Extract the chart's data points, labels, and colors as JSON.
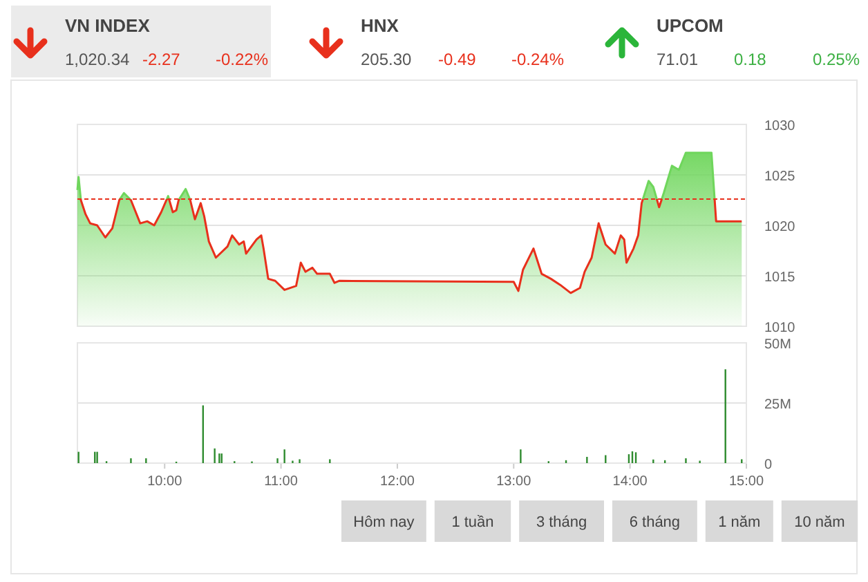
{
  "chart_data": [
    {
      "type": "other",
      "annotations": [
        "VN INDEX",
        "1,020.34",
        "-2.27",
        "-0.22%",
        "HNX",
        "205.30",
        "-0.49",
        "-0.24%",
        "UPCOM",
        "71.01",
        "0.18",
        "0.25%"
      ]
    },
    {
      "type": "area",
      "xlim": [
        9.25,
        15
      ],
      "ylim": [
        1010,
        1030
      ],
      "yticks": [
        1010,
        1015,
        1020,
        1025,
        1030
      ],
      "grid": "y",
      "tick_labels": "y",
      "ref_lines": [
        {
          "axis": "y",
          "value": 1022.61,
          "color": "#e8301c",
          "line_style": "dashed"
        }
      ],
      "series": [
        {
          "color": "#6fd65c",
          "x": [
            9.25,
            9.26,
            9.28,
            9.32,
            9.36,
            9.42,
            9.49,
            9.55,
            9.61,
            9.65,
            9.71,
            9.79,
            9.85,
            9.91,
            9.97,
            10.03,
            10.07,
            10.1,
            10.12,
            10.18,
            10.22,
            10.26,
            10.31,
            10.34,
            10.38,
            10.44,
            10.54,
            10.58,
            10.64,
            10.68,
            10.7,
            10.79,
            10.83,
            10.85,
            10.89,
            10.95,
            11.03,
            11.13,
            11.17,
            11.21,
            11.27,
            11.31,
            11.42,
            11.46,
            11.5,
            13.0,
            13.04,
            13.08,
            13.17,
            13.24,
            13.32,
            13.4,
            13.49,
            13.57,
            13.61,
            13.67,
            13.73,
            13.79,
            13.87,
            13.92,
            13.95,
            13.97,
            14.03,
            14.07,
            14.1,
            14.16,
            14.2,
            14.25,
            14.29,
            14.36,
            14.42,
            14.48,
            14.7,
            14.74,
            14.96
          ],
          "values": [
            1023.5,
            1024.8,
            1022.5,
            1021.1,
            1020.2,
            1020,
            1018.8,
            1019.7,
            1022.5,
            1023.2,
            1022.5,
            1020.2,
            1020.4,
            1020,
            1021.3,
            1022.9,
            1021.3,
            1021.5,
            1022.5,
            1023.6,
            1022.5,
            1020.6,
            1022.2,
            1020.9,
            1018.4,
            1016.8,
            1017.9,
            1019,
            1018.1,
            1018.4,
            1017.2,
            1018.6,
            1019,
            1017.7,
            1014.7,
            1014.5,
            1013.6,
            1014,
            1016.3,
            1015.4,
            1015.8,
            1015.2,
            1015.2,
            1014.3,
            1014.5,
            1014.4,
            1013.5,
            1015.6,
            1017.7,
            1015.2,
            1014.7,
            1014.1,
            1013.3,
            1013.8,
            1015.4,
            1016.8,
            1020.2,
            1018.1,
            1017.2,
            1019,
            1018.6,
            1016.3,
            1017.7,
            1019,
            1022.2,
            1024.4,
            1023.8,
            1021.8,
            1023.2,
            1025.9,
            1025.5,
            1027.2,
            1027.2,
            1020.4,
            1020.4
          ]
        }
      ]
    },
    {
      "type": "bar",
      "xlim": [
        9.25,
        15
      ],
      "xticks": [
        {
          "value": 10,
          "label": "10:00"
        },
        {
          "value": 11,
          "label": "11:00"
        },
        {
          "value": 12,
          "label": "12:00"
        },
        {
          "value": 13,
          "label": "13:00"
        },
        {
          "value": 14,
          "label": "14:00"
        },
        {
          "value": 15,
          "label": "15:00"
        }
      ],
      "ylim": [
        0,
        50
      ],
      "yticks": [
        0,
        {
          "value": 25,
          "label": "25M"
        },
        {
          "value": 50,
          "label": "50M"
        }
      ],
      "grid": "y",
      "x": [
        9.26,
        9.4,
        9.42,
        9.5,
        9.71,
        9.84,
        10.1,
        10.33,
        10.43,
        10.47,
        10.49,
        10.6,
        10.75,
        10.97,
        11.03,
        11.1,
        11.16,
        11.42,
        13.06,
        13.3,
        13.45,
        13.63,
        13.79,
        13.99,
        14.02,
        14.05,
        14.2,
        14.3,
        14.48,
        14.6,
        14.82,
        14.96
      ],
      "series": [
        {
          "color": "#2e8b2e",
          "values": [
            4.7,
            4.7,
            4.7,
            0.8,
            2,
            2,
            0.6,
            24,
            6.1,
            4,
            4,
            0.8,
            0.7,
            2,
            5.7,
            1,
            1.6,
            1.6,
            5.7,
            0.8,
            1.2,
            2.6,
            3.3,
            3.7,
            4.9,
            4.5,
            1.5,
            1.2,
            2,
            1,
            39,
            1.6
          ]
        }
      ]
    },
    {
      "type": "other",
      "annotations": [
        "Hôm nay",
        "1 tuần",
        "3 tháng",
        "6 tháng",
        "1 năm",
        "10 năm"
      ]
    }
  ]
}
